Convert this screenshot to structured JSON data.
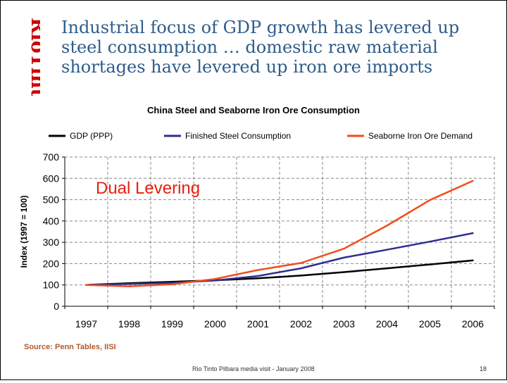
{
  "slide": {
    "logo_text": "RioTinto",
    "title": "Industrial focus of GDP growth has levered up steel consumption … domestic raw material shortages have levered up iron ore imports",
    "source": "Source: Penn Tables, IISI",
    "footer": "Rio Tinto Pilbara media visit - January 2008",
    "page_number": "18"
  },
  "colors": {
    "title": "#2E5C8A",
    "logo": "#CC0000",
    "gdp": "#000000",
    "steel": "#2E2E8E",
    "iron_ore": "#F04E1A",
    "annotation": "#E8200F"
  },
  "chart_data": {
    "type": "line",
    "title": "China Steel and Seaborne Iron Ore Consumption",
    "xlabel": "",
    "ylabel": "Index (1997 = 100)",
    "ylim": [
      0,
      700
    ],
    "yticks": [
      0,
      100,
      200,
      300,
      400,
      500,
      600,
      700
    ],
    "grid": true,
    "legend_position": "top",
    "x": [
      "1997",
      "1998",
      "1999",
      "2000",
      "2001",
      "2002",
      "2003",
      "2004",
      "2005",
      "2006"
    ],
    "series": [
      {
        "name": "GDP (PPP)",
        "color": "#000000",
        "values": [
          100,
          108,
          115,
          122,
          131,
          144,
          160,
          178,
          196,
          215
        ]
      },
      {
        "name": "Finished Steel Consumption",
        "color": "#2E2E8E",
        "values": [
          100,
          105,
          110,
          121,
          142,
          178,
          228,
          265,
          303,
          343
        ]
      },
      {
        "name": "Seaborne Iron Ore Demand",
        "color": "#F04E1A",
        "values": [
          100,
          93,
          103,
          128,
          170,
          203,
          270,
          378,
          498,
          588
        ]
      }
    ],
    "annotation": "Dual Levering"
  }
}
